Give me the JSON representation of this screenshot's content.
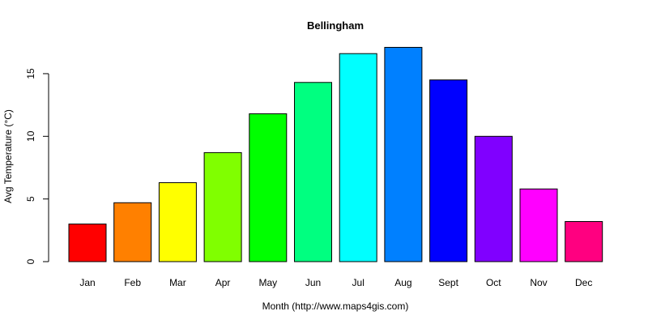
{
  "chart_data": {
    "type": "bar",
    "title": "Bellingham",
    "xlabel": "Month (http://www.maps4gis.com)",
    "ylabel": "Avg Temperature (°C)",
    "categories": [
      "Jan",
      "Feb",
      "Mar",
      "Apr",
      "May",
      "Jun",
      "Jul",
      "Aug",
      "Sept",
      "Oct",
      "Nov",
      "Dec"
    ],
    "values": [
      3.0,
      4.7,
      6.3,
      8.7,
      11.8,
      14.3,
      16.6,
      17.1,
      14.5,
      10.0,
      5.8,
      3.2
    ],
    "colors": [
      "#FF0000",
      "#FF8000",
      "#FFFF00",
      "#80FF00",
      "#00FF00",
      "#00FF80",
      "#00FFFF",
      "#0080FF",
      "#0000FF",
      "#8000FF",
      "#FF00FF",
      "#FF0080"
    ],
    "yticks": [
      0,
      5,
      10,
      15
    ],
    "ylim": [
      0,
      17.5
    ],
    "grid": false,
    "legend": null
  }
}
